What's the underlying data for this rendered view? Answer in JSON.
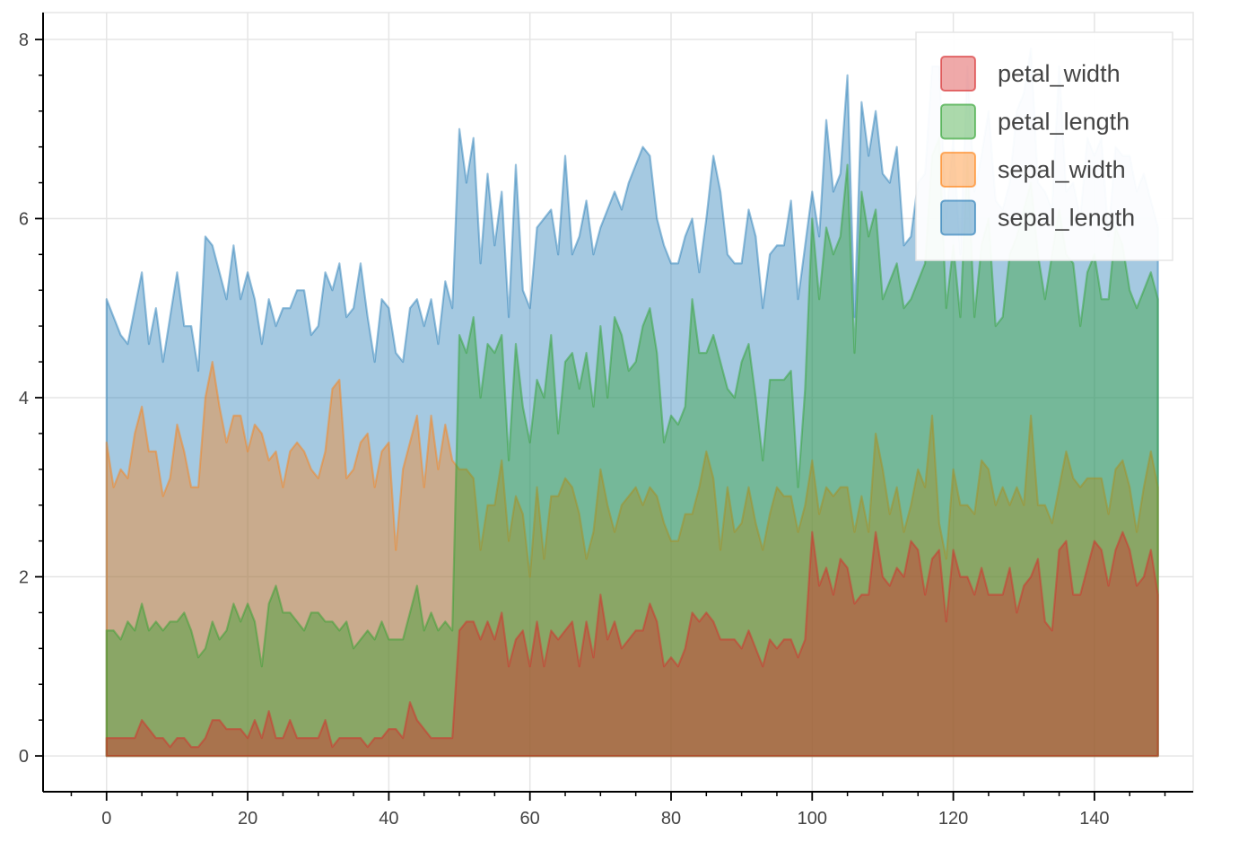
{
  "chart_data": {
    "type": "area",
    "title": "",
    "xlabel": "",
    "ylabel": "",
    "xlim": [
      -9,
      154
    ],
    "ylim": [
      -0.4,
      8.3
    ],
    "x_ticks": [
      0,
      20,
      40,
      60,
      80,
      100,
      120,
      140
    ],
    "x_tick_labels": [
      "0",
      "20",
      "40",
      "60",
      "80",
      "100",
      "120",
      "140"
    ],
    "y_ticks": [
      0,
      2,
      4,
      6,
      8
    ],
    "y_tick_labels": [
      "0",
      "2",
      "4",
      "6",
      "8"
    ],
    "grid": true,
    "stacked": false,
    "legend_position": "top-right",
    "series": [
      {
        "name": "sepal_length",
        "color": "#1f77b4",
        "values": [
          5.1,
          4.9,
          4.7,
          4.6,
          5.0,
          5.4,
          4.6,
          5.0,
          4.4,
          4.9,
          5.4,
          4.8,
          4.8,
          4.3,
          5.8,
          5.7,
          5.4,
          5.1,
          5.7,
          5.1,
          5.4,
          5.1,
          4.6,
          5.1,
          4.8,
          5.0,
          5.0,
          5.2,
          5.2,
          4.7,
          4.8,
          5.4,
          5.2,
          5.5,
          4.9,
          5.0,
          5.5,
          4.9,
          4.4,
          5.1,
          5.0,
          4.5,
          4.4,
          5.0,
          5.1,
          4.8,
          5.1,
          4.6,
          5.3,
          5.0,
          7.0,
          6.4,
          6.9,
          5.5,
          6.5,
          5.7,
          6.3,
          4.9,
          6.6,
          5.2,
          5.0,
          5.9,
          6.0,
          6.1,
          5.6,
          6.7,
          5.6,
          5.8,
          6.2,
          5.6,
          5.9,
          6.1,
          6.3,
          6.1,
          6.4,
          6.6,
          6.8,
          6.7,
          6.0,
          5.7,
          5.5,
          5.5,
          5.8,
          6.0,
          5.4,
          6.0,
          6.7,
          6.3,
          5.6,
          5.5,
          5.5,
          6.1,
          5.8,
          5.0,
          5.6,
          5.7,
          5.7,
          6.2,
          5.1,
          5.7,
          6.3,
          5.8,
          7.1,
          6.3,
          6.5,
          7.6,
          4.9,
          7.3,
          6.7,
          7.2,
          6.5,
          6.4,
          6.8,
          5.7,
          5.8,
          6.4,
          6.5,
          7.7,
          7.7,
          6.0,
          6.9,
          5.6,
          7.7,
          6.3,
          6.7,
          7.2,
          6.2,
          6.1,
          6.4,
          7.2,
          7.4,
          7.9,
          6.4,
          6.3,
          6.1,
          7.7,
          6.3,
          6.4,
          6.0,
          6.9,
          6.7,
          6.9,
          5.8,
          6.8,
          6.7,
          6.7,
          6.3,
          6.5,
          6.2,
          5.9
        ]
      },
      {
        "name": "sepal_width",
        "color": "#ff7f0e",
        "values": [
          3.5,
          3.0,
          3.2,
          3.1,
          3.6,
          3.9,
          3.4,
          3.4,
          2.9,
          3.1,
          3.7,
          3.4,
          3.0,
          3.0,
          4.0,
          4.4,
          3.9,
          3.5,
          3.8,
          3.8,
          3.4,
          3.7,
          3.6,
          3.3,
          3.4,
          3.0,
          3.4,
          3.5,
          3.4,
          3.2,
          3.1,
          3.4,
          4.1,
          4.2,
          3.1,
          3.2,
          3.5,
          3.6,
          3.0,
          3.4,
          3.5,
          2.3,
          3.2,
          3.5,
          3.8,
          3.0,
          3.8,
          3.2,
          3.7,
          3.3,
          3.2,
          3.2,
          3.1,
          2.3,
          2.8,
          2.8,
          3.3,
          2.4,
          2.9,
          2.7,
          2.0,
          3.0,
          2.2,
          2.9,
          2.9,
          3.1,
          3.0,
          2.7,
          2.2,
          2.5,
          3.2,
          2.8,
          2.5,
          2.8,
          2.9,
          3.0,
          2.8,
          3.0,
          2.9,
          2.6,
          2.4,
          2.4,
          2.7,
          2.7,
          3.0,
          3.4,
          3.1,
          2.3,
          3.0,
          2.5,
          2.6,
          3.0,
          2.6,
          2.3,
          2.7,
          3.0,
          2.9,
          2.9,
          2.5,
          2.8,
          3.3,
          2.7,
          3.0,
          2.9,
          3.0,
          3.0,
          2.5,
          2.9,
          2.5,
          3.6,
          3.2,
          2.7,
          3.0,
          2.5,
          2.8,
          3.2,
          3.0,
          3.8,
          2.6,
          2.2,
          3.2,
          2.8,
          2.8,
          2.7,
          3.3,
          3.2,
          2.8,
          3.0,
          2.8,
          3.0,
          2.8,
          3.8,
          2.8,
          2.8,
          2.6,
          3.0,
          3.4,
          3.1,
          3.0,
          3.1,
          3.1,
          3.1,
          2.7,
          3.2,
          3.3,
          3.0,
          2.5,
          3.0,
          3.4,
          3.0
        ]
      },
      {
        "name": "petal_length",
        "color": "#2ca02c",
        "values": [
          1.4,
          1.4,
          1.3,
          1.5,
          1.4,
          1.7,
          1.4,
          1.5,
          1.4,
          1.5,
          1.5,
          1.6,
          1.4,
          1.1,
          1.2,
          1.5,
          1.3,
          1.4,
          1.7,
          1.5,
          1.7,
          1.5,
          1.0,
          1.7,
          1.9,
          1.6,
          1.6,
          1.5,
          1.4,
          1.6,
          1.6,
          1.5,
          1.5,
          1.4,
          1.5,
          1.2,
          1.3,
          1.4,
          1.3,
          1.5,
          1.3,
          1.3,
          1.3,
          1.6,
          1.9,
          1.4,
          1.6,
          1.4,
          1.5,
          1.4,
          4.7,
          4.5,
          4.9,
          4.0,
          4.6,
          4.5,
          4.7,
          3.3,
          4.6,
          3.9,
          3.5,
          4.2,
          4.0,
          4.7,
          3.6,
          4.4,
          4.5,
          4.1,
          4.5,
          3.9,
          4.8,
          4.0,
          4.9,
          4.7,
          4.3,
          4.4,
          4.8,
          5.0,
          4.5,
          3.5,
          3.8,
          3.7,
          3.9,
          5.1,
          4.5,
          4.5,
          4.7,
          4.4,
          4.1,
          4.0,
          4.4,
          4.6,
          4.0,
          3.3,
          4.2,
          4.2,
          4.2,
          4.3,
          3.0,
          4.1,
          6.0,
          5.1,
          5.9,
          5.6,
          5.8,
          6.6,
          4.5,
          6.3,
          5.8,
          6.1,
          5.1,
          5.3,
          5.5,
          5.0,
          5.1,
          5.3,
          5.5,
          6.7,
          6.9,
          5.0,
          5.7,
          4.9,
          6.7,
          4.9,
          5.7,
          6.0,
          4.8,
          4.9,
          5.6,
          5.8,
          6.1,
          6.4,
          5.6,
          5.1,
          5.6,
          6.1,
          5.6,
          5.5,
          4.8,
          5.4,
          5.6,
          5.1,
          5.1,
          5.9,
          5.7,
          5.2,
          5.0,
          5.2,
          5.4,
          5.1
        ]
      },
      {
        "name": "petal_width",
        "color": "#d62728",
        "values": [
          0.2,
          0.2,
          0.2,
          0.2,
          0.2,
          0.4,
          0.3,
          0.2,
          0.2,
          0.1,
          0.2,
          0.2,
          0.1,
          0.1,
          0.2,
          0.4,
          0.4,
          0.3,
          0.3,
          0.3,
          0.2,
          0.4,
          0.2,
          0.5,
          0.2,
          0.2,
          0.4,
          0.2,
          0.2,
          0.2,
          0.2,
          0.4,
          0.1,
          0.2,
          0.2,
          0.2,
          0.2,
          0.1,
          0.2,
          0.2,
          0.3,
          0.3,
          0.2,
          0.6,
          0.4,
          0.3,
          0.2,
          0.2,
          0.2,
          0.2,
          1.4,
          1.5,
          1.5,
          1.3,
          1.5,
          1.3,
          1.6,
          1.0,
          1.3,
          1.4,
          1.0,
          1.5,
          1.0,
          1.4,
          1.3,
          1.4,
          1.5,
          1.0,
          1.5,
          1.1,
          1.8,
          1.3,
          1.5,
          1.2,
          1.3,
          1.4,
          1.4,
          1.7,
          1.5,
          1.0,
          1.1,
          1.0,
          1.2,
          1.6,
          1.5,
          1.6,
          1.5,
          1.3,
          1.3,
          1.3,
          1.2,
          1.4,
          1.2,
          1.0,
          1.3,
          1.2,
          1.3,
          1.3,
          1.1,
          1.3,
          2.5,
          1.9,
          2.1,
          1.8,
          2.2,
          2.1,
          1.7,
          1.8,
          1.8,
          2.5,
          2.0,
          1.9,
          2.1,
          2.0,
          2.4,
          2.3,
          1.8,
          2.2,
          2.3,
          1.5,
          2.3,
          2.0,
          2.0,
          1.8,
          2.1,
          1.8,
          1.8,
          1.8,
          2.1,
          1.6,
          1.9,
          2.0,
          2.2,
          1.5,
          1.4,
          2.3,
          2.4,
          1.8,
          1.8,
          2.1,
          2.4,
          2.3,
          1.9,
          2.3,
          2.5,
          2.3,
          1.9,
          2.0,
          2.3,
          1.8
        ]
      }
    ],
    "legend": [
      "petal_width",
      "petal_length",
      "sepal_width",
      "sepal_length"
    ]
  }
}
